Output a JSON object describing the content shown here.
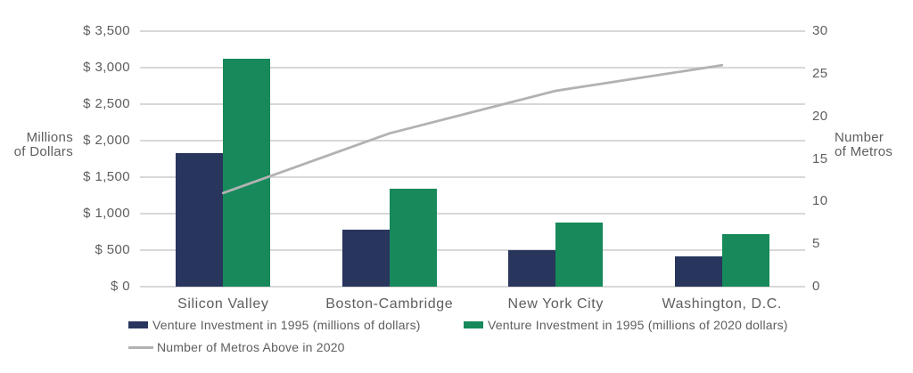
{
  "chart_data": {
    "type": "bar",
    "categories": [
      "Silicon Valley",
      "Boston-Cambridge",
      "New York City",
      "Washington, D.C."
    ],
    "series": [
      {
        "name": "Venture Investment in 1995 (millions of dollars)",
        "type": "bar",
        "color": "#28355d",
        "axis": "left",
        "values": [
          1830,
          780,
          500,
          420
        ]
      },
      {
        "name": "Venture Investment in 1995 (millions of 2020 dollars)",
        "type": "bar",
        "color": "#17895a",
        "axis": "left",
        "values": [
          3120,
          1340,
          880,
          720
        ]
      },
      {
        "name": "Number of Metros Above in 2020",
        "type": "line",
        "color": "#b2b2b4",
        "axis": "right",
        "values": [
          11,
          18,
          23,
          26
        ]
      }
    ],
    "left_axis": {
      "title_lines": [
        "Millions",
        "of Dollars"
      ],
      "min": 0,
      "max": 3500,
      "step": 500,
      "tick_labels": [
        "$ 3,500",
        "$ 3,000",
        "$ 2,500",
        "$ 2,000",
        "$ 1,500",
        "$ 1,000",
        "$ 500",
        "$ 0"
      ],
      "tick_values": [
        3500,
        3000,
        2500,
        2000,
        1500,
        1000,
        500,
        0
      ]
    },
    "right_axis": {
      "title_lines": [
        "Number",
        "of Metros"
      ],
      "min": 0,
      "max": 30,
      "step": 5,
      "tick_labels": [
        "30",
        "25",
        "20",
        "15",
        "10",
        "5",
        "0"
      ],
      "tick_values": [
        30,
        25,
        20,
        15,
        10,
        5,
        0
      ]
    },
    "grid": true,
    "legend_position": "bottom-left",
    "title": ""
  },
  "colors": {
    "navy": "#28355d",
    "green": "#17895a",
    "gridline": "#d8d8d8",
    "trend_line": "#b2b2b4",
    "text": "#5d5e60",
    "background": "#ffffff"
  }
}
